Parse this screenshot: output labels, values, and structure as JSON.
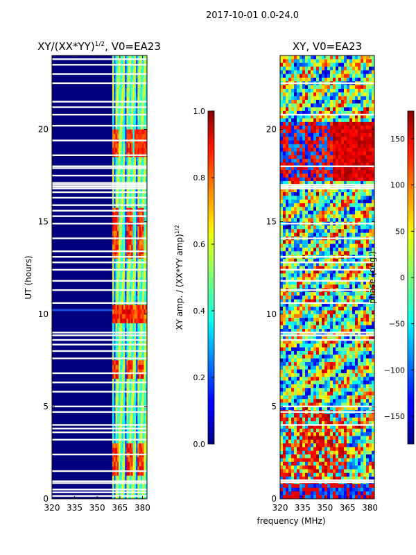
{
  "figure": {
    "suptitle": "2017-10-01 0.0-24.0",
    "xlabel": "frequency (MHz)"
  },
  "chart_data": [
    {
      "type": "heatmap",
      "title": "XY/(XX*YY)^{1/2}, V0=EA23",
      "title_main": "XY/(XX*YY)",
      "title_sup": "1/2",
      "title_rest": ", V0=EA23",
      "xlabel": "frequency (MHz)",
      "ylabel": "UT (hours)",
      "xlim": [
        320,
        383
      ],
      "ylim": [
        0,
        24
      ],
      "xticks": [
        320,
        335,
        350,
        365,
        380
      ],
      "yticks": [
        0,
        5,
        10,
        15,
        20
      ],
      "colorbar": {
        "label_main": "XY amp. / (XX*YY amp)",
        "label_sup": "1/2",
        "range": [
          0.0,
          1.0
        ],
        "ticks": [
          "0.0",
          "0.2",
          "0.4",
          "0.6",
          "0.8",
          "1.0"
        ],
        "tick_values": [
          0.0,
          0.2,
          0.4,
          0.6,
          0.8,
          1.0
        ]
      },
      "signal_band_mhz": [
        360,
        383
      ],
      "flagged_hours": [
        0.15,
        0.35,
        0.5,
        0.85,
        0.95,
        1.5,
        2.4,
        3.2,
        3.6,
        3.8,
        4.0,
        4.7,
        5.0,
        5.8,
        6.3,
        6.8,
        7.6,
        8.0,
        8.35,
        8.6,
        8.85,
        9.0,
        10.6,
        11.3,
        11.8,
        12.4,
        12.8,
        13.1,
        13.4,
        14.1,
        14.9,
        15.3,
        15.6,
        15.9,
        16.3,
        16.6,
        16.8,
        16.9,
        17.0,
        17.1,
        17.5,
        17.9,
        18.0,
        18.6,
        19.4,
        20.2,
        20.8,
        21.2,
        21.5,
        22.5,
        23.0,
        23.5,
        23.8
      ]
    },
    {
      "type": "heatmap",
      "title": "XY, V0=EA23",
      "xlabel": "frequency (MHz)",
      "ylabel": "",
      "xlim": [
        320,
        383
      ],
      "ylim": [
        0,
        24
      ],
      "xticks": [
        320,
        335,
        350,
        365,
        380
      ],
      "yticks": [
        0,
        5,
        10,
        15,
        20
      ],
      "colorbar": {
        "label": "phase (deg.)",
        "range": [
          -180,
          180
        ],
        "ticks": [
          "150",
          "100",
          "50",
          "0",
          "−50",
          "−100",
          "−150"
        ],
        "tick_values": [
          150,
          100,
          50,
          0,
          -50,
          -100,
          -150
        ]
      },
      "flagged_hours": [
        0.9,
        1.0,
        4.0,
        4.7,
        5.0,
        8.6,
        8.85,
        9.0,
        10.6,
        11.3,
        11.8,
        12.4,
        12.8,
        13.1,
        14.1,
        14.9,
        16.8,
        16.9,
        17.0,
        18.0,
        20.8,
        22.5
      ]
    }
  ]
}
